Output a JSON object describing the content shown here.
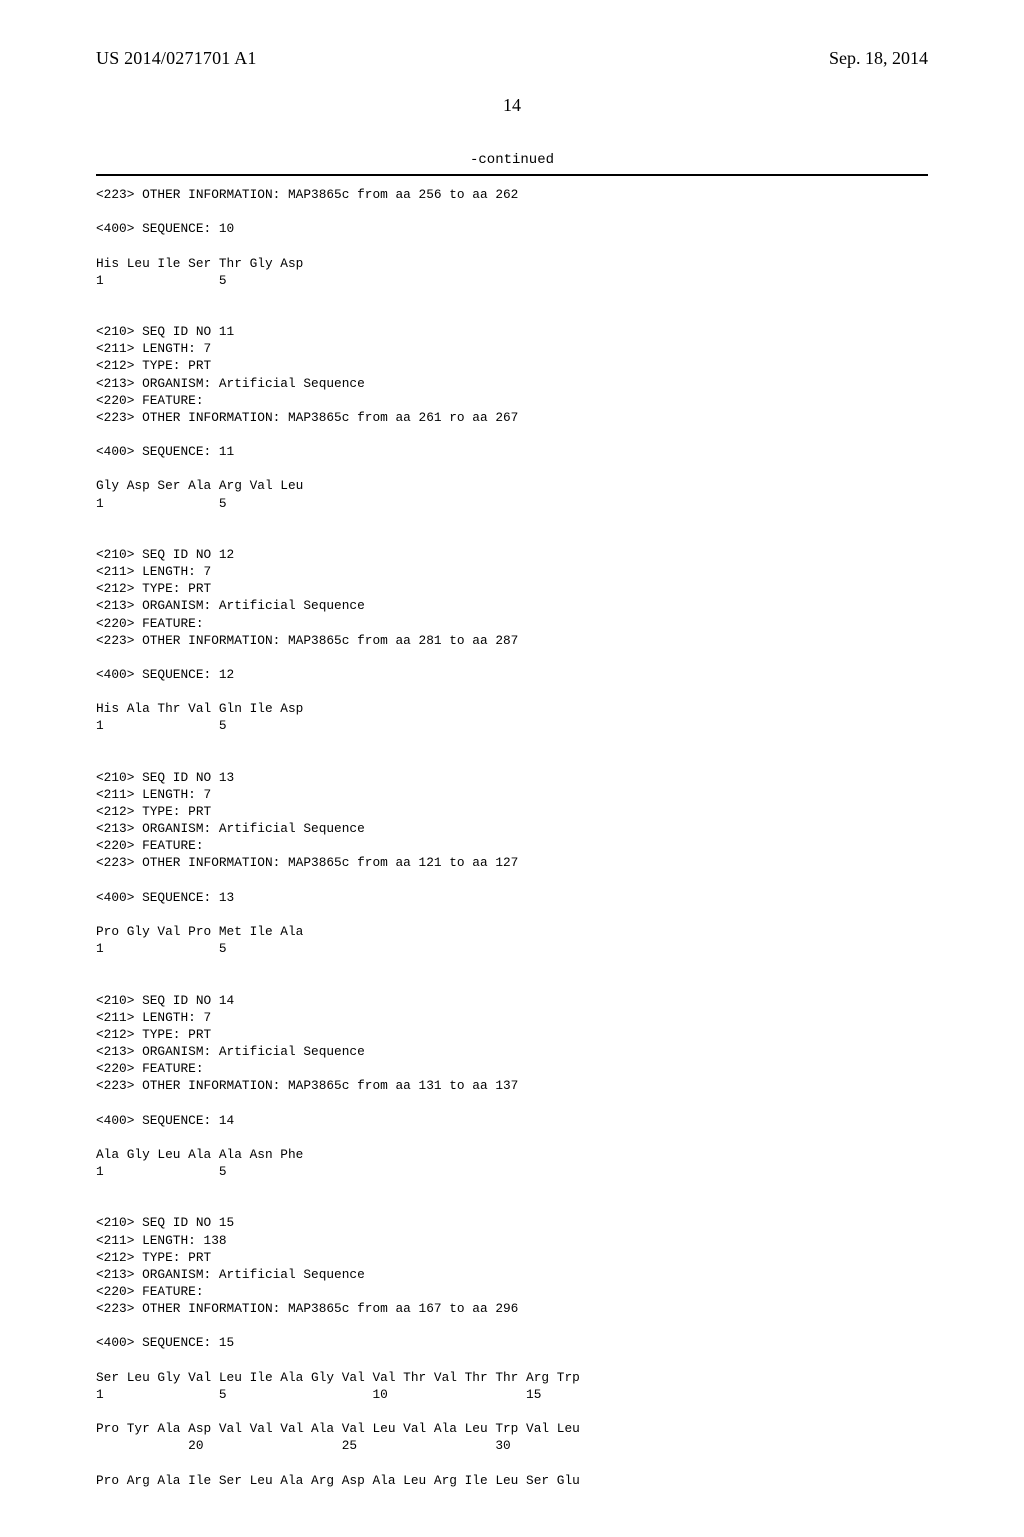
{
  "header": {
    "publication_number": "US 2014/0271701 A1",
    "date": "Sep. 18, 2014"
  },
  "page_number": "14",
  "continued_label": "-continued",
  "listing_text": "<223> OTHER INFORMATION: MAP3865c from aa 256 to aa 262\n\n<400> SEQUENCE: 10\n\nHis Leu Ile Ser Thr Gly Asp\n1               5\n\n\n<210> SEQ ID NO 11\n<211> LENGTH: 7\n<212> TYPE: PRT\n<213> ORGANISM: Artificial Sequence\n<220> FEATURE:\n<223> OTHER INFORMATION: MAP3865c from aa 261 ro aa 267\n\n<400> SEQUENCE: 11\n\nGly Asp Ser Ala Arg Val Leu\n1               5\n\n\n<210> SEQ ID NO 12\n<211> LENGTH: 7\n<212> TYPE: PRT\n<213> ORGANISM: Artificial Sequence\n<220> FEATURE:\n<223> OTHER INFORMATION: MAP3865c from aa 281 to aa 287\n\n<400> SEQUENCE: 12\n\nHis Ala Thr Val Gln Ile Asp\n1               5\n\n\n<210> SEQ ID NO 13\n<211> LENGTH: 7\n<212> TYPE: PRT\n<213> ORGANISM: Artificial Sequence\n<220> FEATURE:\n<223> OTHER INFORMATION: MAP3865c from aa 121 to aa 127\n\n<400> SEQUENCE: 13\n\nPro Gly Val Pro Met Ile Ala\n1               5\n\n\n<210> SEQ ID NO 14\n<211> LENGTH: 7\n<212> TYPE: PRT\n<213> ORGANISM: Artificial Sequence\n<220> FEATURE:\n<223> OTHER INFORMATION: MAP3865c from aa 131 to aa 137\n\n<400> SEQUENCE: 14\n\nAla Gly Leu Ala Ala Asn Phe\n1               5\n\n\n<210> SEQ ID NO 15\n<211> LENGTH: 138\n<212> TYPE: PRT\n<213> ORGANISM: Artificial Sequence\n<220> FEATURE:\n<223> OTHER INFORMATION: MAP3865c from aa 167 to aa 296\n\n<400> SEQUENCE: 15\n\nSer Leu Gly Val Leu Ile Ala Gly Val Val Thr Val Thr Thr Arg Trp\n1               5                   10                  15\n\nPro Tyr Ala Asp Val Val Val Ala Val Leu Val Ala Leu Trp Val Leu\n            20                  25                  30\n\nPro Arg Ala Ile Ser Leu Ala Arg Asp Ala Leu Arg Ile Leu Ser Glu"
}
